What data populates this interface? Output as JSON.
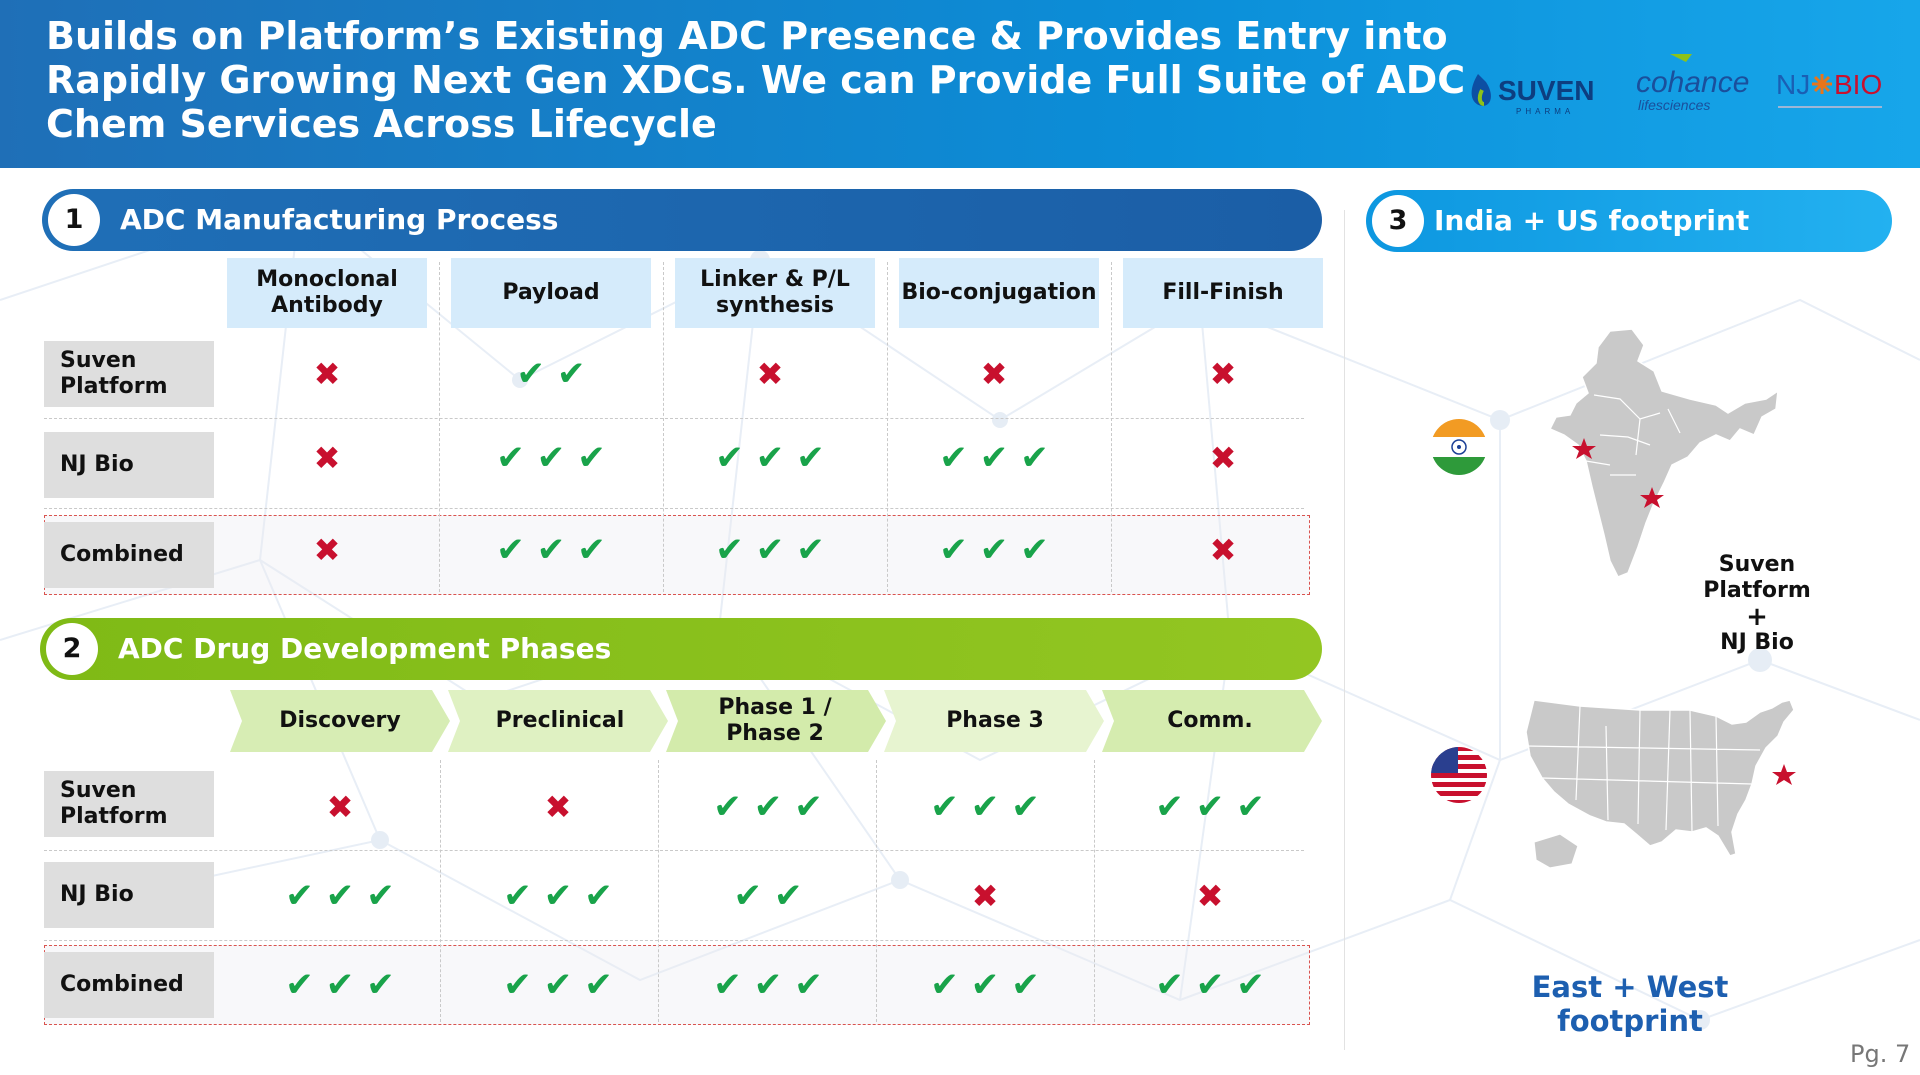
{
  "header": {
    "title_lines": [
      "Builds on Platform’s Existing ADC Presence &  Provides Entry into",
      "Rapidly Growing Next Gen XDCs. We can Provide Full Suite of ADC",
      "Chem Services Across Lifecycle"
    ],
    "logos": {
      "suven": "SUVEN",
      "suven_sub": "PHARMA",
      "cohance": "cohance",
      "cohance_sub": "lifesciences",
      "njbio_left": "NJ",
      "njbio_right": "BIO"
    }
  },
  "section1": {
    "number": "1",
    "title": "ADC Manufacturing Process",
    "columns": [
      "Monoclonal Antibody",
      "Payload",
      "Linker & P/L synthesis",
      "Bio-conjugation",
      "Fill-Finish"
    ],
    "rows": [
      {
        "label": "Suven Platform",
        "cells": [
          0,
          2,
          0,
          0,
          0
        ]
      },
      {
        "label": "NJ Bio",
        "cells": [
          0,
          3,
          3,
          3,
          0
        ]
      },
      {
        "label": "Combined",
        "cells": [
          0,
          3,
          3,
          3,
          0
        ]
      }
    ]
  },
  "section2": {
    "number": "2",
    "title": "ADC Drug Development Phases",
    "columns": [
      "Discovery",
      "Preclinical",
      "Phase 1 / Phase 2",
      "Phase 3",
      "Comm."
    ],
    "rows": [
      {
        "label": "Suven Platform",
        "cells": [
          0,
          0,
          3,
          3,
          3
        ]
      },
      {
        "label": "NJ Bio",
        "cells": [
          3,
          3,
          2,
          0,
          0
        ]
      },
      {
        "label": "Combined",
        "cells": [
          3,
          3,
          3,
          3,
          3
        ]
      }
    ]
  },
  "section3": {
    "number": "3",
    "title": "India + US footprint",
    "combined_line1": "Suven",
    "combined_line2": "Platform",
    "combined_plus": "+",
    "combined_line3": "NJ Bio",
    "east_west": "East + West footprint"
  },
  "legend": {
    "check_symbol": "✔",
    "cross_symbol": "✖"
  },
  "colors": {
    "check": "#19a34a",
    "cross": "#c8102e",
    "section1": "#1f6fb7",
    "section2": "#8cc21a",
    "section3": "#12a3e8"
  },
  "page_number": "Pg. 7"
}
